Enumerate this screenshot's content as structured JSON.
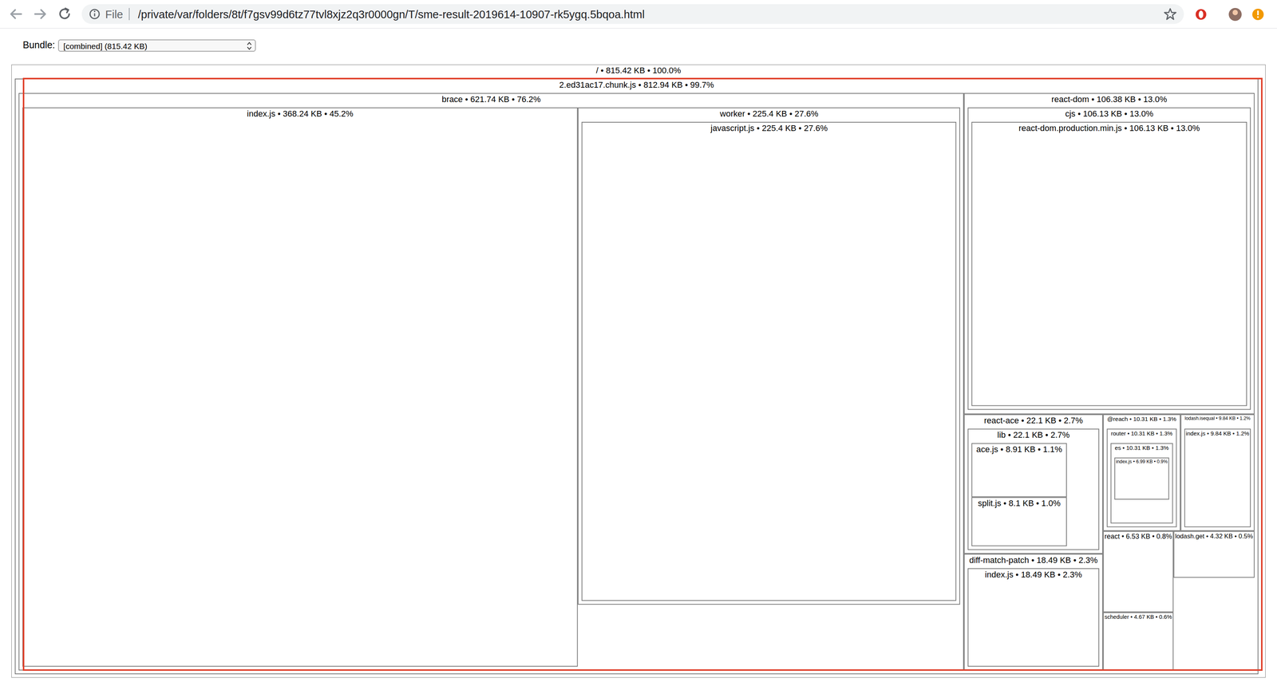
{
  "browser": {
    "scheme": "File",
    "url": "/private/var/folders/8t/f7gsv99d6tz77tvl8xjz2q3r0000gn/T/sme-result-2019614-10907-rk5ygq.5bqoa.html"
  },
  "bundle_select": {
    "label": "Bundle:",
    "value": "[combined] (815.42 KB)"
  },
  "chart_data": {
    "type": "treemap",
    "color": "#ffffff",
    "root": {
      "text": "/ • 815.42 KB • 100.0%",
      "size": 815.42,
      "children": [
        {
          "text": "2.ed31ac17.chunk.js • 812.94 KB • 99.7%",
          "size": 812.94,
          "children": [
            {
              "text": "brace • 621.74 KB • 76.2%",
              "size": 621.74,
              "children": [
                {
                  "text": "index.js • 368.24 KB • 45.2%",
                  "size": 368.24
                },
                {
                  "text": "worker • 225.4 KB • 27.6%",
                  "size": 225.4,
                  "children": [
                    {
                      "text": "javascript.js • 225.4 KB • 27.6%",
                      "size": 225.4
                    }
                  ]
                }
              ]
            },
            {
              "text": "react-dom • 106.38 KB • 13.0%",
              "size": 106.38,
              "children": [
                {
                  "text": "cjs • 106.13 KB • 13.0%",
                  "size": 106.13,
                  "children": [
                    {
                      "text": "react-dom.production.min.js • 106.13 KB • 13.0%",
                      "size": 106.13
                    }
                  ]
                }
              ]
            },
            {
              "text": "react-ace • 22.1 KB • 2.7%",
              "size": 22.1,
              "children": [
                {
                  "text": "lib • 22.1 KB • 2.7%",
                  "size": 22.1,
                  "children": [
                    {
                      "text": "ace.js • 8.91 KB • 1.1%",
                      "size": 8.91
                    },
                    {
                      "text": "split.js • 8.1 KB • 1.0%",
                      "size": 8.1
                    }
                  ]
                }
              ]
            },
            {
              "text": "diff-match-patch • 18.49 KB • 2.3%",
              "size": 18.49,
              "children": [
                {
                  "text": "index.js • 18.49 KB • 2.3%",
                  "size": 18.49
                }
              ]
            },
            {
              "text": "@reach • 10.31 KB • 1.3%",
              "size": 10.31,
              "children": [
                {
                  "text": "router • 10.31 KB • 1.3%",
                  "size": 10.31,
                  "children": [
                    {
                      "text": "es • 10.31 KB • 1.3%",
                      "size": 10.31,
                      "children": [
                        {
                          "text": "index.js • 6.99 KB • 0.9%",
                          "size": 6.99
                        }
                      ]
                    }
                  ]
                }
              ]
            },
            {
              "text": "lodash.isequal • 9.84 KB • 1.2%",
              "size": 9.84,
              "children": [
                {
                  "text": "index.js • 9.84 KB • 1.2%",
                  "size": 9.84
                }
              ]
            },
            {
              "text": "react • 6.53 KB • 0.8%",
              "size": 6.53
            },
            {
              "text": "scheduler • 4.67 KB • 0.6%",
              "size": 4.67
            },
            {
              "text": "lodash.get • 4.32 KB • 0.5%",
              "size": 4.32
            }
          ]
        }
      ]
    }
  }
}
